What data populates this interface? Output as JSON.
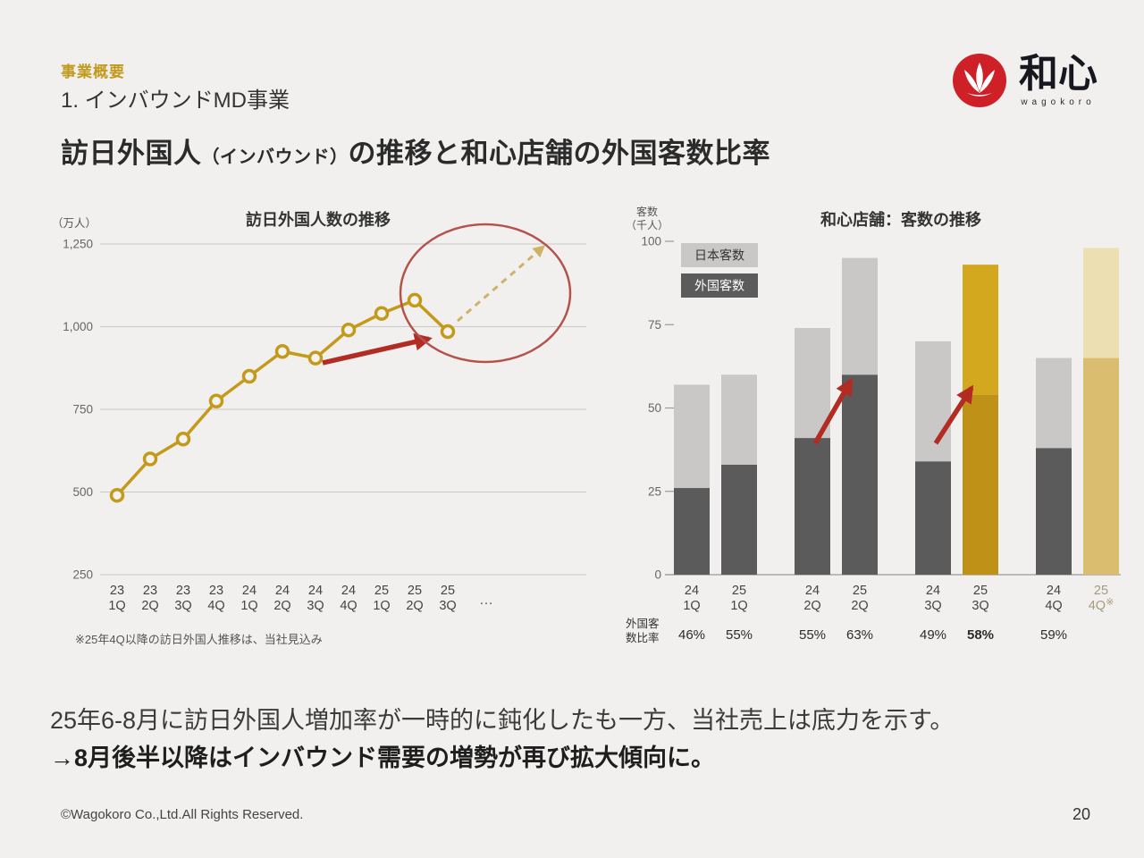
{
  "header": {
    "eyebrow": "事業概要",
    "subtitle": "1. インバウンドMD事業"
  },
  "logo": {
    "kanji": "和心",
    "roman": "wagokoro"
  },
  "title": {
    "main_before": "訪日外国人",
    "paren": "（インバウンド）",
    "main_after": "の推移と和心店舗の外国客数比率"
  },
  "body": {
    "line1": "25年6-8月に訪日外国人増加率が一時的に鈍化したも一方、当社売上は底力を示す。",
    "line2": "→8月後半以降はインバウンド需要の増勢が再び拡大傾向に。"
  },
  "footer": {
    "copyright": "©Wagokoro Co.,Ltd.All Rights Reserved.",
    "page": "20"
  },
  "chart_data": [
    {
      "type": "line",
      "title": "訪日外国人数の推移",
      "unit_label": "（万人）",
      "categories": [
        "23 1Q",
        "23 2Q",
        "23 3Q",
        "23 4Q",
        "24 1Q",
        "24 2Q",
        "24 3Q",
        "24 4Q",
        "25 1Q",
        "25 2Q",
        "25 3Q"
      ],
      "x_overflow": "…",
      "values": [
        490,
        600,
        660,
        775,
        850,
        925,
        905,
        990,
        1040,
        1080,
        985
      ],
      "ylim": [
        250,
        1250
      ],
      "yticks": [
        250,
        500,
        750,
        1000,
        1250
      ],
      "grid": true,
      "line_color": "#c49a1b",
      "marker_fill": "#f4f3f0",
      "footnote": "※25年4Q以降の訪日外国人推移は、当社見込み",
      "annotations": {
        "red_trend_arrow": true,
        "forecast_dashed_arrow": true,
        "highlight_circle": true,
        "red": "#b22c23",
        "circle_color": "#b5524b",
        "dash_color": "#cdb268"
      }
    },
    {
      "type": "stacked-bar",
      "title": "和心店舗：客数の推移",
      "unit_label_lines": [
        "客数",
        "（千人）"
      ],
      "ylim": [
        0,
        100
      ],
      "yticks": [
        0,
        25,
        50,
        75,
        100
      ],
      "legend": [
        {
          "label": "日本客数",
          "color": "#c9c8c6",
          "text_color": "#333333"
        },
        {
          "label": "外国客数",
          "color": "#5b5b5c",
          "text_color": "#ffffff"
        }
      ],
      "series_names": {
        "bottom": "外国客数",
        "top": "日本客数"
      },
      "ratio_row_label_lines": [
        "外国客",
        "数比率"
      ],
      "groups": [
        {
          "bars": [
            {
              "label_year": "24",
              "label_q": "1Q",
              "foreign": 26,
              "japan": 31,
              "ratio": "46%",
              "style": "default"
            },
            {
              "label_year": "25",
              "label_q": "1Q",
              "foreign": 33,
              "japan": 27,
              "ratio": "55%",
              "style": "default"
            }
          ]
        },
        {
          "bars": [
            {
              "label_year": "24",
              "label_q": "2Q",
              "foreign": 41,
              "japan": 33,
              "ratio": "55%",
              "style": "default"
            },
            {
              "label_year": "25",
              "label_q": "2Q",
              "foreign": 60,
              "japan": 35,
              "ratio": "63%",
              "style": "default"
            }
          ]
        },
        {
          "bars": [
            {
              "label_year": "24",
              "label_q": "3Q",
              "foreign": 34,
              "japan": 36,
              "ratio": "49%",
              "style": "default"
            },
            {
              "label_year": "25",
              "label_q": "3Q",
              "foreign": 54,
              "japan": 39,
              "ratio": "58%",
              "ratio_bold": true,
              "style": "gold"
            }
          ]
        },
        {
          "bars": [
            {
              "label_year": "24",
              "label_q": "4Q",
              "foreign": 38,
              "japan": 27,
              "ratio": "59%",
              "style": "default"
            },
            {
              "label_year": "25",
              "label_q": "4Q",
              "foreign": 65,
              "japan": 33,
              "ratio": "",
              "style": "forecast",
              "note": "※",
              "label_muted": true
            }
          ]
        }
      ],
      "colors": {
        "default": {
          "foreign": "#5b5b5c",
          "japan": "#c9c8c6"
        },
        "gold": {
          "foreign": "#bf9217",
          "japan": "#d3a81f"
        },
        "forecast": {
          "foreign": "#dabd6e",
          "japan": "#ecdfb2"
        }
      },
      "arrow_color": "#b22c23",
      "arrows": [
        "24 2Q → 25 2Q",
        "24 3Q → 25 3Q"
      ]
    }
  ]
}
